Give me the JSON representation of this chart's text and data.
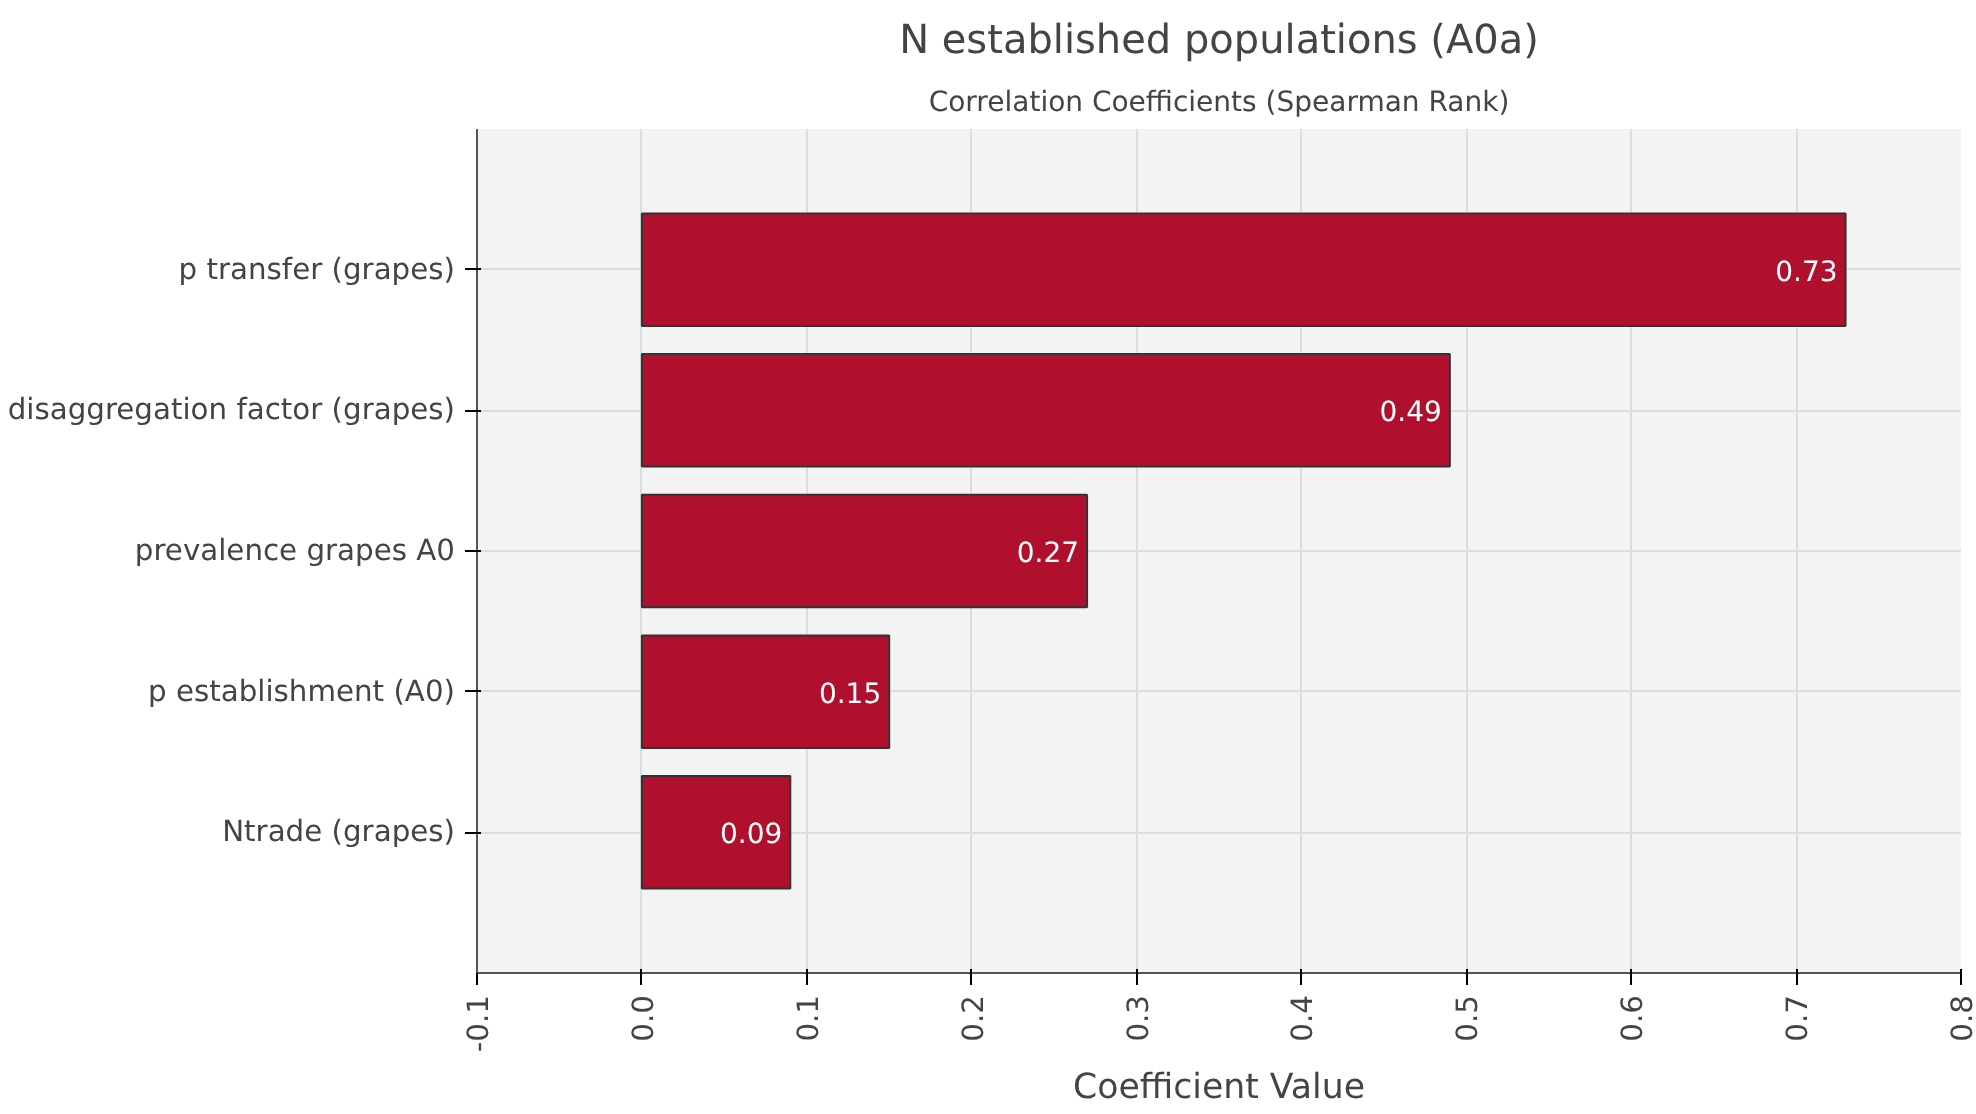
{
  "chart_data": {
    "type": "bar",
    "orientation": "horizontal",
    "title": "N established populations (A0a)",
    "subtitle": "Correlation Coefficients (Spearman Rank)",
    "xlabel": "Coefficient Value",
    "categories": [
      "p transfer (grapes)",
      "disaggregation factor (grapes)",
      "prevalence grapes A0",
      "p establishment (A0)",
      "Ntrade (grapes)"
    ],
    "values": [
      0.73,
      0.49,
      0.27,
      0.15,
      0.09
    ],
    "color": "#b0102e",
    "data_labels": true,
    "xlim": [
      -0.1,
      0.8
    ],
    "xticks": [
      -0.1,
      {
        "value": 0,
        "label": "0.0"
      },
      0.1,
      0.2,
      0.3,
      0.4,
      0.5,
      0.6,
      0.7,
      0.8
    ],
    "grid": true
  }
}
